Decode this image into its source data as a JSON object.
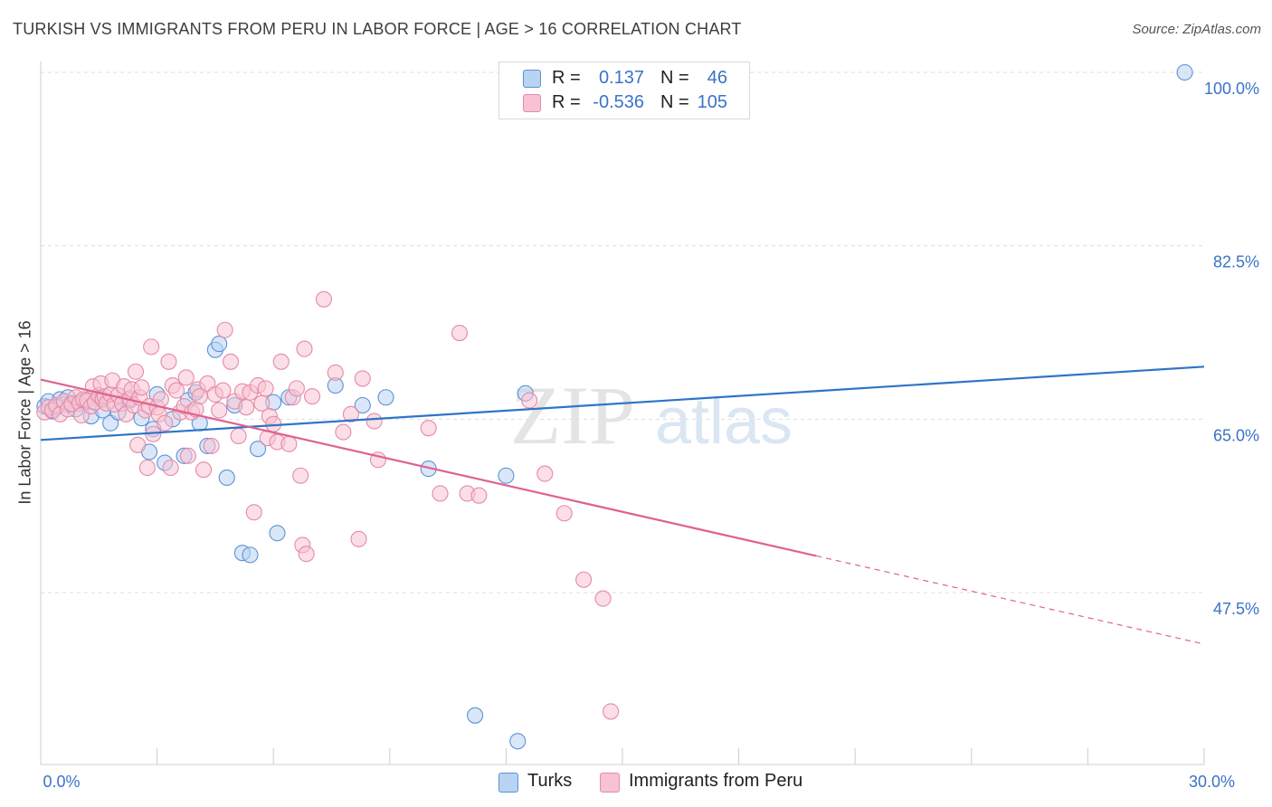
{
  "title": "TURKISH VS IMMIGRANTS FROM PERU IN LABOR FORCE | AGE > 16 CORRELATION CHART",
  "source": "Source: ZipAtlas.com",
  "watermark": {
    "zip": "ZIP",
    "atlas": "atlas"
  },
  "legend": {
    "rows": [
      {
        "r_label": "R =",
        "r_value": "0.137",
        "n_label": "N =",
        "n_value": "46"
      },
      {
        "r_label": "R =",
        "r_value": "-0.536",
        "n_label": "N =",
        "n_value": "105"
      }
    ]
  },
  "colors": {
    "turks_fill": "#b9d3f2",
    "turks_stroke": "#5d92d6",
    "turks_line": "#2f74c8",
    "peru_fill": "#f7c2d2",
    "peru_stroke": "#e58aa8",
    "peru_line": "#e0628e",
    "axis_text": "#3a73c7",
    "grid": "#dddddd"
  },
  "chart_data": {
    "type": "scatter",
    "title": "TURKISH VS IMMIGRANTS FROM PERU IN LABOR FORCE | AGE > 16 CORRELATION CHART",
    "xlabel": "",
    "ylabel": "In Labor Force | Age > 16",
    "xlim": [
      0,
      30
    ],
    "ylim": [
      32.5,
      102.5
    ],
    "x_tick_labels": [
      {
        "value": 0,
        "label": "0.0%"
      },
      {
        "value": 30,
        "label": "30.0%"
      }
    ],
    "y_tick_labels": [
      {
        "value": 100,
        "label": "100.0%"
      },
      {
        "value": 82.5,
        "label": "82.5%"
      },
      {
        "value": 65,
        "label": "65.0%"
      },
      {
        "value": 47.5,
        "label": "47.5%"
      }
    ],
    "series": [
      {
        "name": "Turks",
        "r": 0.137,
        "n": 46,
        "trend": {
          "x0": 0,
          "y0": 62.9,
          "x1": 30,
          "y1": 70.3,
          "dash_from": null
        },
        "points": [
          [
            0.1,
            66.3
          ],
          [
            0.2,
            66.8
          ],
          [
            0.3,
            65.8
          ],
          [
            0.5,
            67.0
          ],
          [
            0.6,
            66.5
          ],
          [
            0.7,
            67.2
          ],
          [
            0.9,
            66.0
          ],
          [
            1.1,
            66.8
          ],
          [
            1.3,
            65.3
          ],
          [
            1.5,
            67.1
          ],
          [
            1.6,
            65.9
          ],
          [
            1.8,
            64.6
          ],
          [
            2.0,
            65.7
          ],
          [
            2.3,
            66.9
          ],
          [
            2.6,
            65.1
          ],
          [
            2.8,
            61.7
          ],
          [
            2.9,
            64.0
          ],
          [
            3.0,
            67.5
          ],
          [
            3.2,
            60.6
          ],
          [
            3.4,
            65.0
          ],
          [
            3.7,
            61.3
          ],
          [
            3.8,
            66.9
          ],
          [
            4.0,
            67.7
          ],
          [
            4.1,
            64.6
          ],
          [
            4.3,
            62.3
          ],
          [
            4.5,
            72.0
          ],
          [
            4.6,
            72.6
          ],
          [
            4.8,
            59.1
          ],
          [
            5.0,
            66.4
          ],
          [
            5.2,
            51.5
          ],
          [
            5.4,
            51.3
          ],
          [
            5.6,
            62.0
          ],
          [
            6.0,
            66.7
          ],
          [
            6.1,
            53.5
          ],
          [
            6.4,
            67.2
          ],
          [
            7.6,
            68.4
          ],
          [
            8.3,
            66.4
          ],
          [
            8.9,
            67.2
          ],
          [
            10.0,
            60.0
          ],
          [
            11.2,
            35.1
          ],
          [
            12.0,
            59.3
          ],
          [
            12.3,
            32.5
          ],
          [
            12.5,
            67.6
          ],
          [
            0.4,
            66.2
          ],
          [
            0.8,
            66.6
          ],
          [
            29.5,
            100.0
          ]
        ]
      },
      {
        "name": "Immigrants from Peru",
        "r": -0.536,
        "n": 105,
        "trend": {
          "x0": 0,
          "y0": 69.0,
          "x1": 30,
          "y1": 42.3,
          "dash_from": 20.0
        },
        "points": [
          [
            0.1,
            65.7
          ],
          [
            0.2,
            66.2
          ],
          [
            0.3,
            65.9
          ],
          [
            0.4,
            66.4
          ],
          [
            0.5,
            65.5
          ],
          [
            0.6,
            66.8
          ],
          [
            0.7,
            66.0
          ],
          [
            0.8,
            66.5
          ],
          [
            0.9,
            67.2
          ],
          [
            1.0,
            66.6
          ],
          [
            1.05,
            65.4
          ],
          [
            1.1,
            67.0
          ],
          [
            1.2,
            66.9
          ],
          [
            1.3,
            66.3
          ],
          [
            1.35,
            68.3
          ],
          [
            1.4,
            66.7
          ],
          [
            1.5,
            67.4
          ],
          [
            1.55,
            68.6
          ],
          [
            1.6,
            67.0
          ],
          [
            1.65,
            67.3
          ],
          [
            1.7,
            66.6
          ],
          [
            1.8,
            67.5
          ],
          [
            1.85,
            68.9
          ],
          [
            1.9,
            66.5
          ],
          [
            2.0,
            67.4
          ],
          [
            2.1,
            66.6
          ],
          [
            2.15,
            68.3
          ],
          [
            2.2,
            65.5
          ],
          [
            2.3,
            67.1
          ],
          [
            2.35,
            68.0
          ],
          [
            2.4,
            66.4
          ],
          [
            2.45,
            69.8
          ],
          [
            2.5,
            62.4
          ],
          [
            2.55,
            67.2
          ],
          [
            2.6,
            68.2
          ],
          [
            2.7,
            65.9
          ],
          [
            2.75,
            60.1
          ],
          [
            2.8,
            66.3
          ],
          [
            2.85,
            72.3
          ],
          [
            2.9,
            63.5
          ],
          [
            3.0,
            66.2
          ],
          [
            3.05,
            65.5
          ],
          [
            3.1,
            67.0
          ],
          [
            3.2,
            64.6
          ],
          [
            3.3,
            70.8
          ],
          [
            3.35,
            60.1
          ],
          [
            3.4,
            68.4
          ],
          [
            3.5,
            67.9
          ],
          [
            3.6,
            65.7
          ],
          [
            3.7,
            66.3
          ],
          [
            3.75,
            69.2
          ],
          [
            3.8,
            61.3
          ],
          [
            3.9,
            65.7
          ],
          [
            4.0,
            66.0
          ],
          [
            4.05,
            68.0
          ],
          [
            4.1,
            67.3
          ],
          [
            4.2,
            59.9
          ],
          [
            4.3,
            68.6
          ],
          [
            4.4,
            62.3
          ],
          [
            4.5,
            67.5
          ],
          [
            4.6,
            65.9
          ],
          [
            4.7,
            67.9
          ],
          [
            4.75,
            74.0
          ],
          [
            4.9,
            70.8
          ],
          [
            5.0,
            66.8
          ],
          [
            5.1,
            63.3
          ],
          [
            5.2,
            67.8
          ],
          [
            5.3,
            66.2
          ],
          [
            5.4,
            67.7
          ],
          [
            5.5,
            55.6
          ],
          [
            5.6,
            68.4
          ],
          [
            5.7,
            66.6
          ],
          [
            5.8,
            68.1
          ],
          [
            5.85,
            63.1
          ],
          [
            5.9,
            65.3
          ],
          [
            6.0,
            64.5
          ],
          [
            6.1,
            62.7
          ],
          [
            6.2,
            70.8
          ],
          [
            6.4,
            62.5
          ],
          [
            6.5,
            67.2
          ],
          [
            6.6,
            68.1
          ],
          [
            6.7,
            59.3
          ],
          [
            6.75,
            52.3
          ],
          [
            6.8,
            72.1
          ],
          [
            6.85,
            51.4
          ],
          [
            7.0,
            67.3
          ],
          [
            7.3,
            77.1
          ],
          [
            7.6,
            69.7
          ],
          [
            7.8,
            63.7
          ],
          [
            8.0,
            65.5
          ],
          [
            8.2,
            52.9
          ],
          [
            8.3,
            69.1
          ],
          [
            8.6,
            64.8
          ],
          [
            8.7,
            60.9
          ],
          [
            10.0,
            64.1
          ],
          [
            10.3,
            57.5
          ],
          [
            11.0,
            57.5
          ],
          [
            11.3,
            57.3
          ],
          [
            12.6,
            66.9
          ],
          [
            13.0,
            59.5
          ],
          [
            13.5,
            55.5
          ],
          [
            14.0,
            48.8
          ],
          [
            14.5,
            46.9
          ],
          [
            14.7,
            35.5
          ],
          [
            10.8,
            73.7
          ]
        ]
      }
    ],
    "legend_position": "top-center",
    "grid": true
  },
  "bottom_legend": [
    {
      "label": "Turks"
    },
    {
      "label": "Immigrants from Peru"
    }
  ]
}
